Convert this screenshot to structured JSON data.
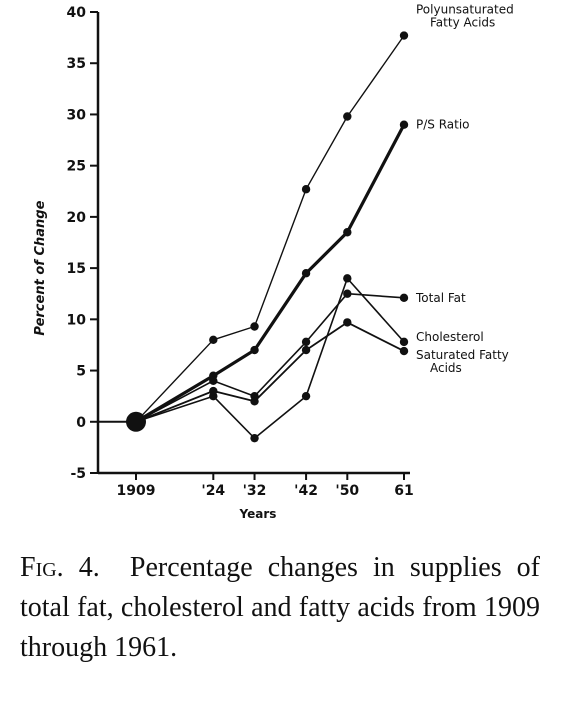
{
  "chart_data": {
    "type": "line",
    "xlabel": "Years",
    "ylabel": "Percent of Change",
    "x": [
      1909,
      1924,
      1932,
      1942,
      1950,
      1961
    ],
    "x_tick_labels": [
      "1909",
      "'24",
      "'32",
      "'42",
      "'50",
      "61"
    ],
    "ylim": [
      -5,
      40
    ],
    "y_ticks": [
      -5,
      0,
      5,
      10,
      15,
      20,
      25,
      30,
      35,
      40
    ],
    "y_tick_labels": [
      "-5",
      "0",
      "5",
      "10",
      "15",
      "20",
      "25",
      "30",
      "35",
      "40"
    ],
    "grid": false,
    "series": [
      {
        "name": "Polyunsaturated Fatty Acids",
        "values": [
          0,
          8,
          9.3,
          22.7,
          29.8,
          37.7
        ]
      },
      {
        "name": "P/S Ratio",
        "values": [
          0,
          4.5,
          7,
          14.5,
          18.5,
          29
        ]
      },
      {
        "name": "Total Fat",
        "values": [
          0,
          4,
          2.5,
          7.8,
          12.5,
          12.1
        ]
      },
      {
        "name": "Cholesterol",
        "values": [
          0,
          2.5,
          -1.6,
          2.5,
          14,
          7.8
        ]
      },
      {
        "name": "Saturated Fatty Acids",
        "values": [
          0,
          3,
          2,
          7,
          9.7,
          6.9
        ]
      }
    ],
    "series_labels": [
      {
        "lines": [
          "Polyunsaturated",
          "Fatty Acids"
        ]
      },
      {
        "lines": [
          "P/S Ratio"
        ]
      },
      {
        "lines": [
          "Total Fat"
        ]
      },
      {
        "lines": [
          "Cholesterol"
        ]
      },
      {
        "lines": [
          "Saturated Fatty",
          "Acids"
        ]
      }
    ]
  },
  "caption": {
    "fig_label": "Fig. 4.",
    "text": "Percentage changes in supplies of total fat, cholesterol and fatty acids from 1909 through 1961."
  }
}
